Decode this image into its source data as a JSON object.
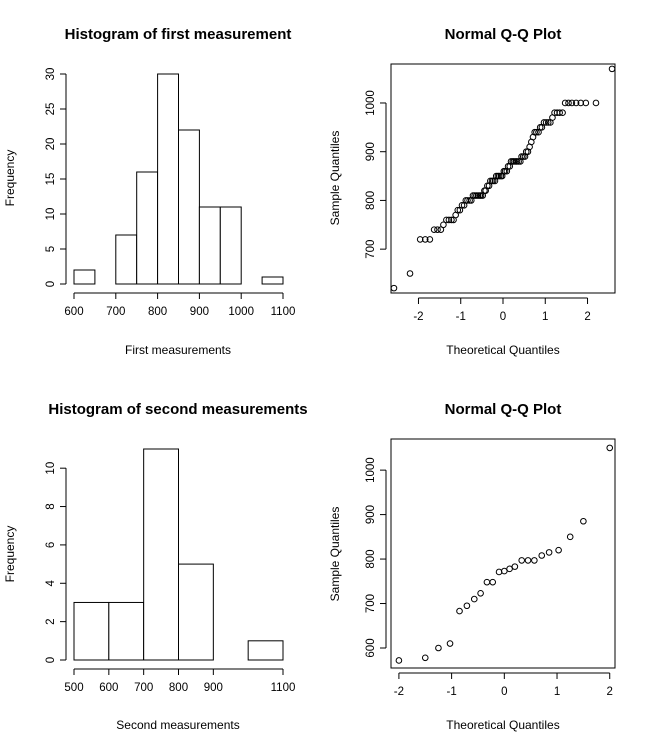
{
  "chart_data": [
    {
      "type": "bar",
      "title": "Histogram of first measurement",
      "xlabel": "First measurements",
      "ylabel": "Frequency",
      "bin_edges": [
        600,
        650,
        700,
        750,
        800,
        850,
        900,
        950,
        1000,
        1050,
        1100
      ],
      "values": [
        2,
        0,
        7,
        16,
        30,
        22,
        11,
        11,
        0,
        1
      ],
      "xlim": [
        600,
        1100
      ],
      "ylim": [
        0,
        30
      ],
      "x_ticks": [
        600,
        700,
        800,
        900,
        1000,
        1100
      ],
      "y_ticks": [
        0,
        5,
        10,
        15,
        20,
        25,
        30
      ]
    },
    {
      "type": "scatter",
      "title": "Normal Q-Q Plot",
      "xlabel": "Theoretical Quantiles",
      "ylabel": "Sample Quantiles",
      "xlim": [
        -2.65,
        2.65
      ],
      "ylim": [
        610,
        1080
      ],
      "x_ticks": [
        -2,
        -1,
        0,
        1,
        2
      ],
      "y_ticks": [
        700,
        800,
        900,
        1000
      ],
      "x": [
        -2.58,
        -2.2,
        -1.96,
        -1.84,
        -1.73,
        -1.63,
        -1.55,
        -1.47,
        -1.41,
        -1.34,
        -1.28,
        -1.22,
        -1.17,
        -1.12,
        -1.07,
        -1.02,
        -0.97,
        -0.92,
        -0.88,
        -0.84,
        -0.79,
        -0.75,
        -0.71,
        -0.67,
        -0.63,
        -0.59,
        -0.55,
        -0.52,
        -0.48,
        -0.44,
        -0.41,
        -0.37,
        -0.33,
        -0.3,
        -0.26,
        -0.23,
        -0.19,
        -0.16,
        -0.12,
        -0.09,
        -0.05,
        -0.02,
        0.02,
        0.05,
        0.09,
        0.12,
        0.16,
        0.19,
        0.23,
        0.26,
        0.3,
        0.33,
        0.37,
        0.41,
        0.44,
        0.48,
        0.52,
        0.55,
        0.59,
        0.63,
        0.67,
        0.71,
        0.75,
        0.79,
        0.84,
        0.88,
        0.92,
        0.97,
        1.02,
        1.07,
        1.12,
        1.17,
        1.22,
        1.28,
        1.34,
        1.41,
        1.47,
        1.55,
        1.63,
        1.73,
        1.84,
        1.96,
        2.2,
        2.58
      ],
      "y": [
        620,
        650,
        720,
        720,
        720,
        740,
        740,
        740,
        750,
        760,
        760,
        760,
        760,
        770,
        780,
        780,
        790,
        790,
        800,
        800,
        800,
        800,
        810,
        810,
        810,
        810,
        810,
        810,
        810,
        820,
        820,
        830,
        830,
        840,
        840,
        840,
        840,
        850,
        850,
        850,
        850,
        850,
        860,
        860,
        860,
        870,
        870,
        880,
        880,
        880,
        880,
        880,
        880,
        880,
        890,
        890,
        890,
        900,
        900,
        910,
        920,
        930,
        940,
        940,
        940,
        950,
        950,
        960,
        960,
        960,
        960,
        970,
        980,
        980,
        980,
        980,
        1000,
        1000,
        1000,
        1000,
        1000,
        1000,
        1000,
        1070
      ]
    },
    {
      "type": "bar",
      "title": "Histogram of second measurements",
      "xlabel": "Second measurements",
      "ylabel": "Frequency",
      "bin_edges": [
        500,
        600,
        700,
        800,
        900,
        1000,
        1100
      ],
      "values": [
        3,
        3,
        11,
        5,
        0,
        1
      ],
      "xlim": [
        500,
        1100
      ],
      "ylim": [
        0,
        11
      ],
      "x_ticks": [
        500,
        600,
        700,
        800,
        900,
        1100
      ],
      "y_ticks": [
        0,
        2,
        4,
        6,
        8,
        10
      ]
    },
    {
      "type": "scatter",
      "title": "Normal Q-Q Plot",
      "xlabel": "Theoretical Quantiles",
      "ylabel": "Sample Quantiles",
      "xlim": [
        -2.15,
        2.1
      ],
      "ylim": [
        555,
        1070
      ],
      "x_ticks": [
        -2,
        -1,
        0,
        1,
        2
      ],
      "y_ticks": [
        600,
        700,
        800,
        900,
        1000
      ],
      "x": [
        -2.0,
        -1.5,
        -1.25,
        -1.03,
        -0.85,
        -0.71,
        -0.57,
        -0.45,
        -0.33,
        -0.22,
        -0.1,
        0.0,
        0.1,
        0.2,
        0.33,
        0.45,
        0.57,
        0.71,
        0.85,
        1.03,
        1.25,
        1.5,
        2.0
      ],
      "y": [
        572,
        578,
        600,
        610,
        683,
        695,
        710,
        723,
        748,
        748,
        771,
        773,
        778,
        783,
        797,
        797,
        797,
        808,
        815,
        820,
        850,
        885,
        1050
      ]
    }
  ]
}
